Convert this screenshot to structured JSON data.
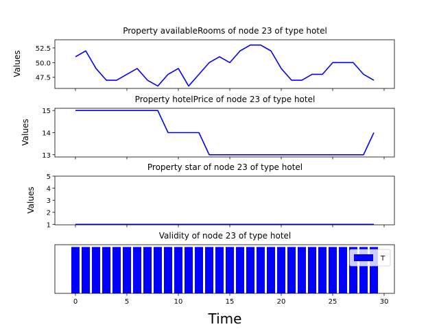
{
  "chart_data": [
    {
      "type": "line",
      "title": "Property availableRooms of node 23 of type hotel",
      "ylabel": "Values",
      "xlim": [
        -2,
        31
      ],
      "ylim": [
        45.6,
        53.9
      ],
      "yticks": [
        47.5,
        50.0,
        52.5
      ],
      "ytick_labels": [
        "47.5",
        "50.0",
        "52.5"
      ],
      "color": "#0000ff",
      "x": [
        0,
        1,
        2,
        3,
        4,
        5,
        6,
        7,
        8,
        9,
        10,
        11,
        12,
        13,
        14,
        15,
        16,
        17,
        18,
        19,
        20,
        21,
        22,
        23,
        24,
        25,
        26,
        27,
        28,
        29
      ],
      "y": [
        51,
        52,
        49,
        47,
        47,
        48,
        49,
        47,
        46,
        48,
        49,
        46,
        48,
        50,
        51,
        50,
        52,
        53,
        53,
        52,
        49,
        47,
        47,
        48,
        48,
        50,
        50,
        50,
        48,
        47
      ]
    },
    {
      "type": "line",
      "title": "Property hotelPrice of node 23 of type hotel",
      "ylabel": "Values",
      "xlim": [
        -2,
        31
      ],
      "ylim": [
        12.9,
        15.1
      ],
      "yticks": [
        13,
        14,
        15
      ],
      "ytick_labels": [
        "13",
        "14",
        "15"
      ],
      "color": "#0000ff",
      "x": [
        0,
        1,
        2,
        3,
        4,
        5,
        6,
        7,
        8,
        9,
        10,
        11,
        12,
        13,
        14,
        15,
        16,
        17,
        18,
        19,
        20,
        21,
        22,
        23,
        24,
        25,
        26,
        27,
        28,
        29
      ],
      "y": [
        15,
        15,
        15,
        15,
        15,
        15,
        15,
        15,
        15,
        14,
        14,
        14,
        14,
        13,
        13,
        13,
        13,
        13,
        13,
        13,
        13,
        13,
        13,
        13,
        13,
        13,
        13,
        13,
        13,
        14
      ]
    },
    {
      "type": "line",
      "title": "Property star of node 23 of type hotel",
      "ylabel": "Values",
      "xlim": [
        -2,
        31
      ],
      "ylim": [
        0.96,
        5
      ],
      "yticks": [
        1,
        2,
        3,
        4,
        5
      ],
      "ytick_labels": [
        "1",
        "2",
        "3",
        "4",
        "5"
      ],
      "color": "#0000ff",
      "x": [
        0,
        1,
        2,
        3,
        4,
        5,
        6,
        7,
        8,
        9,
        10,
        11,
        12,
        13,
        14,
        15,
        16,
        17,
        18,
        19,
        20,
        21,
        22,
        23,
        24,
        25,
        26,
        27,
        28,
        29
      ],
      "y": [
        1,
        1,
        1,
        1,
        1,
        1,
        1,
        1,
        1,
        1,
        1,
        1,
        1,
        1,
        1,
        1,
        1,
        1,
        1,
        1,
        1,
        1,
        1,
        1,
        1,
        1,
        1,
        1,
        1,
        1
      ]
    },
    {
      "type": "bar",
      "title": "Validity of node 23 of type hotel",
      "xlabel": "Time",
      "xlim": [
        -2,
        31
      ],
      "ylim": [
        0,
        1.05
      ],
      "xticks": [
        0,
        5,
        10,
        15,
        20,
        25,
        30
      ],
      "xtick_labels": [
        "0",
        "5",
        "10",
        "15",
        "20",
        "25",
        "30"
      ],
      "color": "#0000ff",
      "legend": {
        "label": "T",
        "position": "upper right"
      },
      "x": [
        0,
        1,
        2,
        3,
        4,
        5,
        6,
        7,
        8,
        9,
        10,
        11,
        12,
        13,
        14,
        15,
        16,
        17,
        18,
        19,
        20,
        21,
        22,
        23,
        24,
        25,
        26,
        27,
        28,
        29
      ],
      "values": [
        1,
        1,
        1,
        1,
        1,
        1,
        1,
        1,
        1,
        1,
        1,
        1,
        1,
        1,
        1,
        1,
        1,
        1,
        1,
        1,
        1,
        1,
        1,
        1,
        1,
        1,
        1,
        1,
        1,
        1
      ]
    }
  ]
}
